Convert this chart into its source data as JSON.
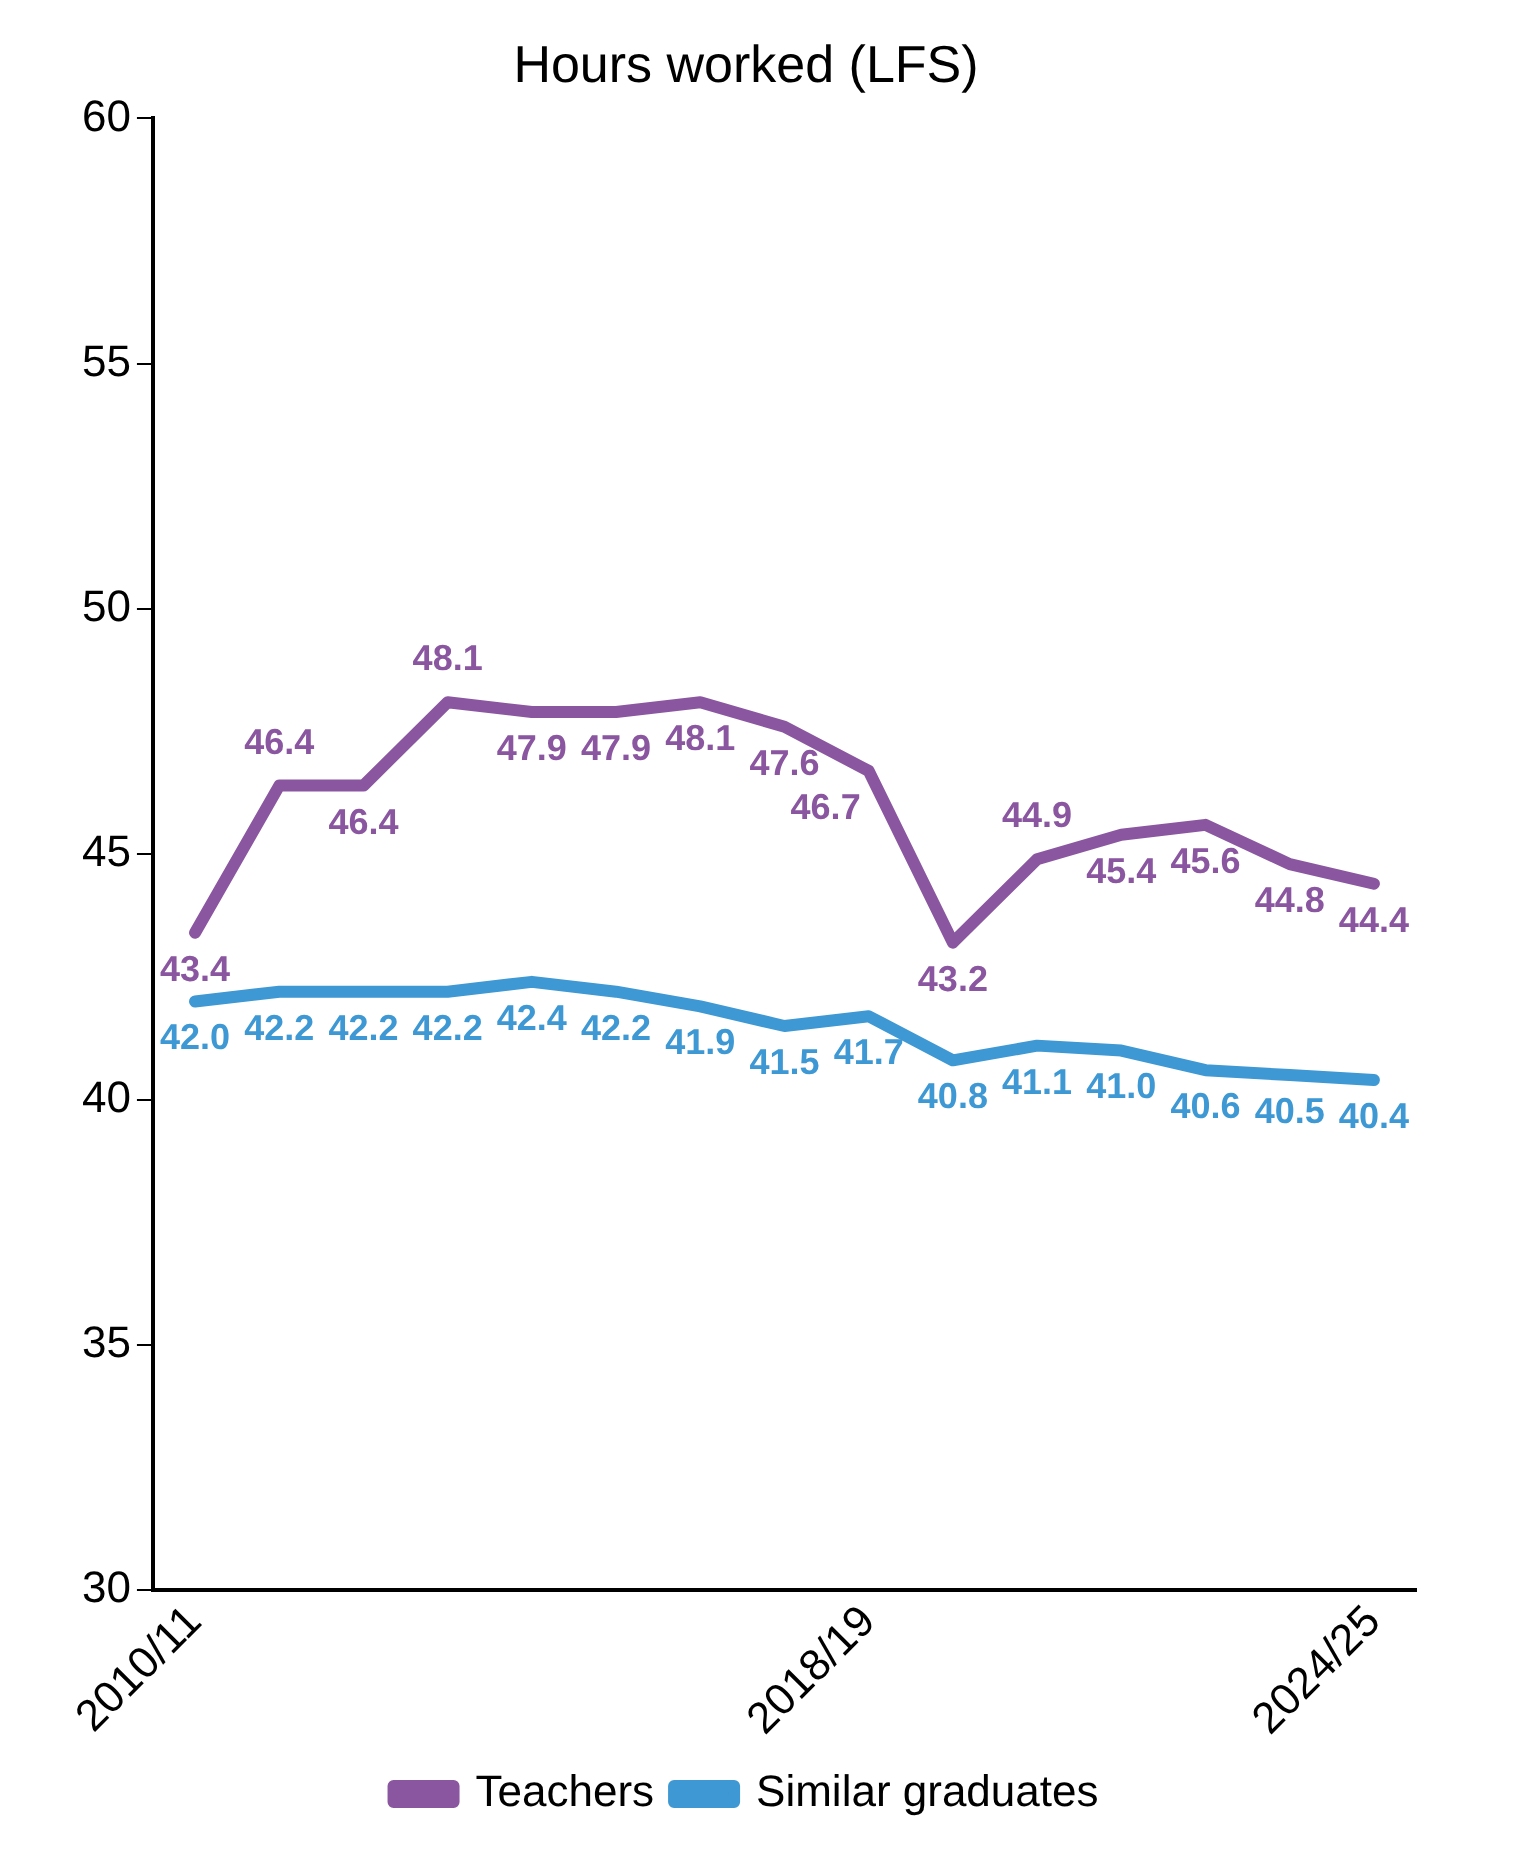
{
  "chart_data": {
    "type": "line",
    "title": "Hours worked (LFS)",
    "categories": [
      "2010/11",
      null,
      null,
      null,
      null,
      null,
      null,
      null,
      "2018/19",
      null,
      null,
      null,
      null,
      null,
      "2024/25"
    ],
    "series": [
      {
        "name": "Teachers",
        "color": "#8b56a0",
        "values": [
          43.4,
          46.4,
          46.4,
          48.1,
          47.9,
          47.9,
          48.1,
          47.6,
          46.7,
          43.2,
          44.9,
          45.4,
          45.6,
          44.8,
          44.4
        ],
        "value_labels": [
          "43.4",
          "46.4",
          "46.4",
          "48.1",
          "47.9",
          "47.9",
          "48.1",
          "47.6",
          "46.7",
          "43.2",
          "44.9",
          "45.4",
          "45.6",
          "44.8",
          "44.4"
        ]
      },
      {
        "name": "Similar graduates",
        "color": "#3d98d3",
        "values": [
          42.0,
          42.2,
          42.2,
          42.2,
          42.4,
          42.2,
          41.9,
          41.5,
          41.7,
          40.8,
          41.1,
          41.0,
          40.6,
          40.5,
          40.4
        ],
        "value_labels": [
          "42.0",
          "42.2",
          "42.2",
          "42.2",
          "42.4",
          "42.2",
          "41.9",
          "41.5",
          "41.7",
          "40.8",
          "41.1",
          "41.0",
          "40.6",
          "40.5",
          "40.4"
        ]
      }
    ],
    "ylim": [
      30,
      60
    ],
    "yticks": [
      30,
      35,
      40,
      45,
      50,
      55,
      60
    ],
    "grid": false,
    "legend": "bottom",
    "marker": "none",
    "line_style": "solid",
    "data_labels": true
  }
}
